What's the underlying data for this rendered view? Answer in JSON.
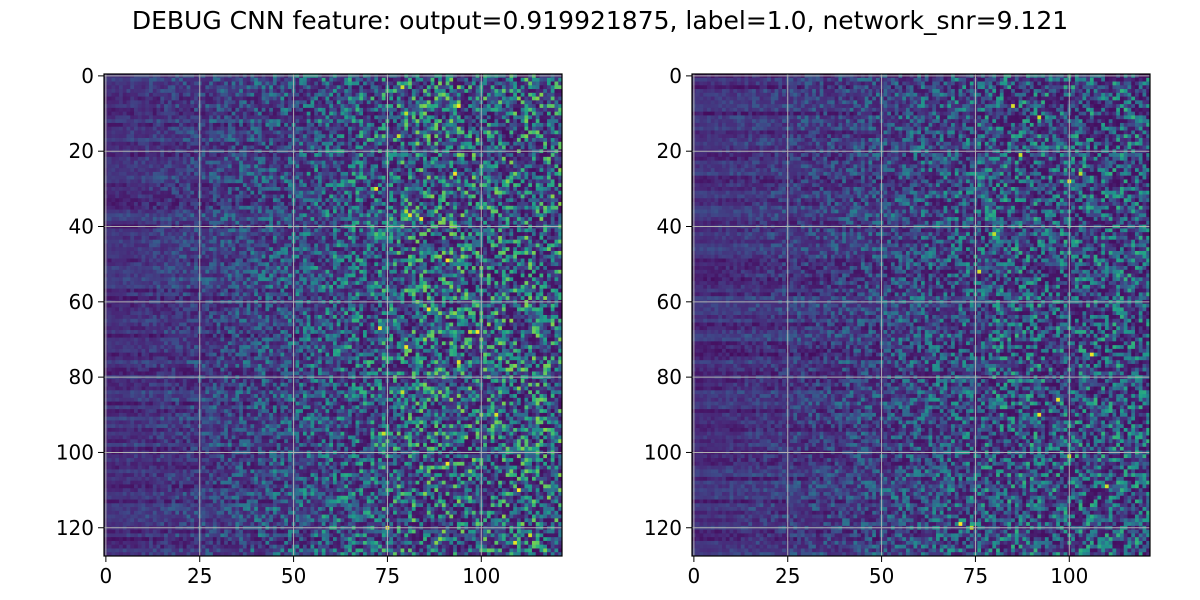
{
  "figure": {
    "title": "DEBUG CNN feature: output=0.919921875, label=1.0, network_snr=9.121"
  },
  "chart_data": [
    {
      "type": "heatmap",
      "panel": "left",
      "colormap": "viridis",
      "rows": 128,
      "cols": 122,
      "xlim": [
        -0.5,
        121.5
      ],
      "ylim": [
        127.5,
        -0.5
      ],
      "xticks": [
        0,
        25,
        50,
        75,
        100
      ],
      "yticks": [
        0,
        20,
        40,
        60,
        80,
        100,
        120
      ],
      "grid": true,
      "hot_cells": [
        [
          3,
          79
        ],
        [
          8,
          94
        ],
        [
          10,
          80
        ],
        [
          16,
          78
        ],
        [
          26,
          93
        ],
        [
          30,
          72
        ],
        [
          36,
          80
        ],
        [
          37,
          81
        ],
        [
          38,
          84
        ],
        [
          49,
          91
        ],
        [
          62,
          86
        ],
        [
          67,
          73
        ],
        [
          68,
          97
        ],
        [
          68,
          99
        ],
        [
          72,
          80
        ],
        [
          76,
          94
        ],
        [
          84,
          79
        ],
        [
          90,
          104
        ],
        [
          95,
          74
        ],
        [
          103,
          91
        ],
        [
          110,
          110
        ],
        [
          120,
          75
        ],
        [
          122,
          113
        ],
        [
          124,
          109
        ]
      ]
    },
    {
      "type": "heatmap",
      "panel": "right",
      "colormap": "viridis",
      "rows": 128,
      "cols": 122,
      "xlim": [
        -0.5,
        121.5
      ],
      "ylim": [
        127.5,
        -0.5
      ],
      "xticks": [
        0,
        25,
        50,
        75,
        100
      ],
      "yticks": [
        0,
        20,
        40,
        60,
        80,
        100,
        120
      ],
      "grid": true,
      "hot_cells": [
        [
          8,
          85
        ],
        [
          11,
          92
        ],
        [
          21,
          87
        ],
        [
          26,
          103
        ],
        [
          28,
          100
        ],
        [
          42,
          80
        ],
        [
          52,
          76
        ],
        [
          74,
          106
        ],
        [
          86,
          97
        ],
        [
          90,
          92
        ],
        [
          101,
          100
        ],
        [
          109,
          110
        ],
        [
          119,
          71
        ],
        [
          120,
          74
        ]
      ]
    }
  ]
}
